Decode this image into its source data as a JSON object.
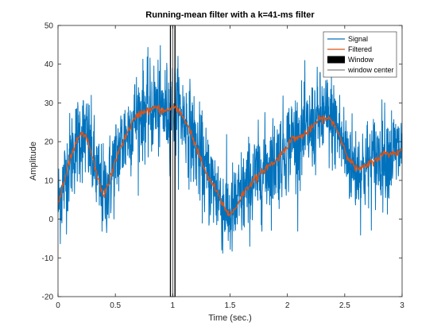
{
  "chart_data": {
    "type": "line",
    "title": "Running-mean filter with a k=41-ms filter",
    "xlabel": "Time (sec.)",
    "ylabel": "Amplitude",
    "xlim": [
      0,
      3
    ],
    "ylim": [
      -20,
      50
    ],
    "xticks": [
      0,
      0.5,
      1,
      1.5,
      2,
      2.5,
      3
    ],
    "xtick_labels": [
      "0",
      "0.5",
      "1",
      "1.5",
      "2",
      "2.5",
      "3"
    ],
    "yticks": [
      -20,
      -10,
      0,
      10,
      20,
      30,
      40,
      50
    ],
    "ytick_labels": [
      "-20",
      "-10",
      "0",
      "10",
      "20",
      "30",
      "40",
      "50"
    ],
    "grid": false,
    "legend_position": "top-right",
    "window": {
      "start": 0.98,
      "end": 1.02,
      "center": 1.0
    },
    "series": [
      {
        "name": "Signal",
        "color": "#0072bd",
        "noise_amplitude": 6,
        "x": [
          0,
          0.05,
          0.1,
          0.15,
          0.2,
          0.25,
          0.3,
          0.35,
          0.4,
          0.45,
          0.5,
          0.55,
          0.6,
          0.65,
          0.7,
          0.75,
          0.8,
          0.85,
          0.9,
          0.95,
          1.0,
          1.05,
          1.1,
          1.15,
          1.2,
          1.25,
          1.3,
          1.35,
          1.4,
          1.45,
          1.5,
          1.55,
          1.6,
          1.65,
          1.7,
          1.75,
          1.8,
          1.85,
          1.9,
          1.95,
          2.0,
          2.05,
          2.1,
          2.15,
          2.2,
          2.25,
          2.3,
          2.35,
          2.4,
          2.45,
          2.5,
          2.55,
          2.6,
          2.65,
          2.7,
          2.75,
          2.8,
          2.85,
          2.9,
          2.95,
          3.0
        ],
        "y": [
          4,
          9,
          15,
          19,
          22,
          21,
          16,
          10,
          6,
          10,
          15,
          19,
          22,
          25,
          27,
          28,
          28,
          29,
          28,
          28,
          29,
          28,
          26,
          23,
          19,
          15,
          11,
          9,
          6,
          3,
          1,
          3,
          6,
          8,
          10,
          11,
          13,
          14,
          15,
          17,
          19,
          21,
          21,
          22,
          23,
          25,
          26,
          26,
          25,
          22,
          18,
          15,
          13,
          13,
          14,
          15,
          16,
          17,
          17,
          17,
          18
        ]
      },
      {
        "name": "Filtered",
        "color": "#d95319",
        "x": [
          0,
          0.05,
          0.1,
          0.15,
          0.2,
          0.25,
          0.3,
          0.35,
          0.4,
          0.45,
          0.5,
          0.55,
          0.6,
          0.65,
          0.7,
          0.75,
          0.8,
          0.85,
          0.9,
          0.95,
          1.0,
          1.05,
          1.1,
          1.15,
          1.2,
          1.25,
          1.3,
          1.35,
          1.4,
          1.45,
          1.5,
          1.55,
          1.6,
          1.65,
          1.7,
          1.75,
          1.8,
          1.85,
          1.9,
          1.95,
          2.0,
          2.05,
          2.1,
          2.15,
          2.2,
          2.25,
          2.3,
          2.35,
          2.4,
          2.45,
          2.5,
          2.55,
          2.6,
          2.65,
          2.7,
          2.75,
          2.8,
          2.85,
          2.9,
          2.95,
          3.0
        ],
        "y": [
          4,
          9,
          15,
          19,
          22,
          21,
          16,
          10,
          6,
          10,
          15,
          19,
          22,
          25,
          27,
          28,
          28,
          29,
          28,
          28,
          29,
          28,
          26,
          23,
          19,
          15,
          11,
          9,
          6,
          3,
          1,
          3,
          6,
          8,
          10,
          11,
          13,
          14,
          15,
          17,
          19,
          21,
          21,
          22,
          23,
          25,
          26,
          26,
          25,
          22,
          18,
          15,
          13,
          13,
          14,
          15,
          16,
          17,
          17,
          17,
          18
        ]
      },
      {
        "name": "Window",
        "color": "#000000"
      },
      {
        "name": "window center",
        "color": "#808080"
      }
    ]
  }
}
